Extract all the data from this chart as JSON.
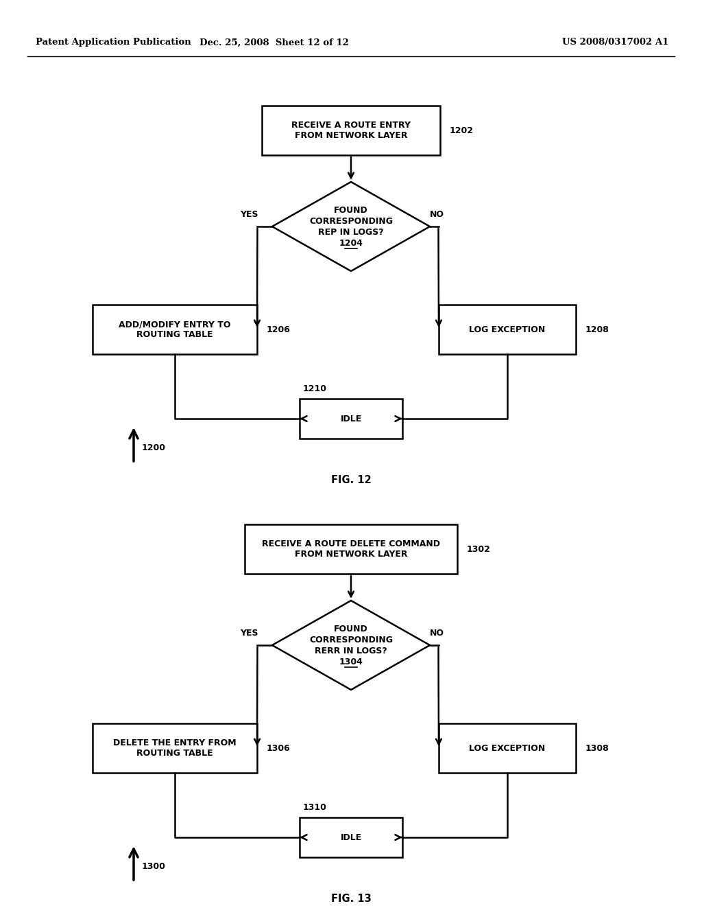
{
  "background_color": "#ffffff",
  "header_left": "Patent Application Publication",
  "header_mid": "Dec. 25, 2008  Sheet 12 of 12",
  "header_right": "US 2008/0317002 A1",
  "fig12": {
    "title": "FIG. 12",
    "label": "1200",
    "box1_label": "RECEIVE A ROUTE ENTRY\nFROM NETWORK LAYER",
    "box1_ref": "1202",
    "diamond_label_lines": [
      "FOUND",
      "CORRESPONDING",
      "REP IN LOGS?"
    ],
    "diamond_ref": "1204",
    "box_left_label": "ADD/MODIFY ENTRY TO\nROUTING TABLE",
    "box_left_ref": "1206",
    "box_right_label": "LOG EXCEPTION",
    "box_right_ref": "1208",
    "box_idle_label": "IDLE",
    "box_idle_ref": "1210"
  },
  "fig13": {
    "title": "FIG. 13",
    "label": "1300",
    "box1_label": "RECEIVE A ROUTE DELETE COMMAND\nFROM NETWORK LAYER",
    "box1_ref": "1302",
    "diamond_label_lines": [
      "FOUND",
      "CORRESPONDING",
      "RERR IN LOGS?"
    ],
    "diamond_ref": "1304",
    "box_left_label": "DELETE THE ENTRY FROM\nROUTING TABLE",
    "box_left_ref": "1306",
    "box_right_label": "LOG EXCEPTION",
    "box_right_ref": "1308",
    "box_idle_label": "IDLE",
    "box_idle_ref": "1310"
  }
}
